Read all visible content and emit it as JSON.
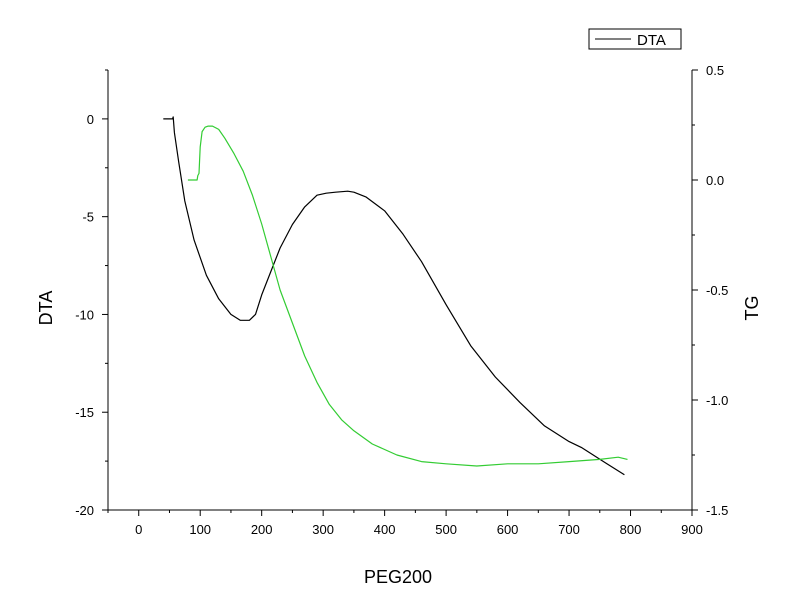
{
  "chart_data": {
    "type": "line",
    "xlabel": "PEG200",
    "y_left_label": "DTA",
    "y_right_label": "TG",
    "xlim": [
      -50,
      900
    ],
    "ylim_left": [
      -20,
      2.5
    ],
    "ylim_right": [
      -1.5,
      0.5
    ],
    "x_ticks": [
      0,
      100,
      200,
      300,
      400,
      500,
      600,
      700,
      800,
      900
    ],
    "x_tick_labels": [
      "0",
      "100",
      "200",
      "300",
      "400",
      "500",
      "600",
      "700",
      "800",
      "900"
    ],
    "y_left_ticks": [
      -20,
      -15,
      -10,
      -5,
      0
    ],
    "y_left_tick_labels": [
      "-20",
      "-15",
      "-10",
      "-5",
      "0"
    ],
    "y_right_ticks": [
      -1.5,
      -1.0,
      -0.5,
      0.0,
      0.5
    ],
    "y_right_tick_labels": [
      "-1.5",
      "-1.0",
      "-0.5",
      "0.0",
      "0.5"
    ],
    "legend": {
      "position": "top-right",
      "entries": [
        "DTA"
      ]
    },
    "grid": false,
    "series": [
      {
        "name": "DTA",
        "axis": "left",
        "color": "#000000",
        "x": [
          40,
          55,
          56,
          58,
          65,
          75,
          90,
          110,
          130,
          150,
          165,
          180,
          190,
          200,
          215,
          230,
          250,
          270,
          290,
          305,
          320,
          340,
          350,
          370,
          400,
          430,
          460,
          500,
          540,
          580,
          620,
          660,
          700,
          720,
          740,
          760,
          790
        ],
        "y": [
          0,
          0,
          0.1,
          -0.7,
          -2.2,
          -4.2,
          -6.2,
          -8.0,
          -9.2,
          -10.0,
          -10.3,
          -10.3,
          -10.0,
          -9.0,
          -7.8,
          -6.6,
          -5.4,
          -4.5,
          -3.9,
          -3.8,
          -3.75,
          -3.7,
          -3.75,
          -4.0,
          -4.7,
          -5.9,
          -7.3,
          -9.5,
          -11.6,
          -13.2,
          -14.5,
          -15.7,
          -16.5,
          -16.8,
          -17.2,
          -17.6,
          -18.2
        ]
      },
      {
        "name": "TG",
        "axis": "right",
        "color": "#33cc33",
        "x": [
          80,
          95,
          96,
          98,
          100,
          103,
          108,
          113,
          120,
          130,
          140,
          155,
          170,
          185,
          200,
          215,
          230,
          250,
          270,
          290,
          310,
          330,
          350,
          380,
          420,
          460,
          500,
          550,
          600,
          650,
          700,
          750,
          780,
          795
        ],
        "y": [
          0.0,
          0.0,
          0.02,
          0.03,
          0.15,
          0.22,
          0.24,
          0.245,
          0.245,
          0.23,
          0.19,
          0.12,
          0.04,
          -0.07,
          -0.2,
          -0.35,
          -0.5,
          -0.65,
          -0.8,
          -0.92,
          -1.02,
          -1.09,
          -1.14,
          -1.2,
          -1.25,
          -1.28,
          -1.29,
          -1.3,
          -1.29,
          -1.29,
          -1.28,
          -1.27,
          -1.26,
          -1.27
        ]
      }
    ]
  }
}
